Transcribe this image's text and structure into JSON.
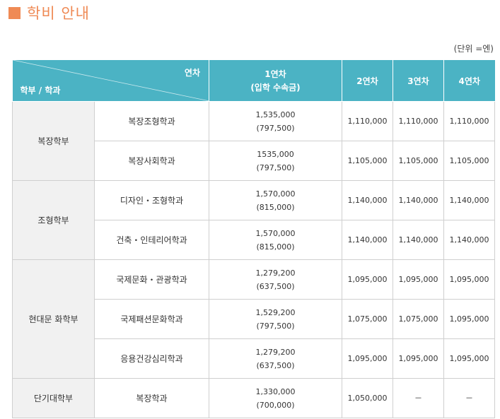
{
  "title": "학비 안내",
  "unit_note": "(단위 =엔)",
  "table": {
    "header": {
      "corner_top": "연차",
      "corner_bottom": "학부 / 학과",
      "year1_line1": "1연차",
      "year1_line2": "(입학 수속금)",
      "year2": "2연차",
      "year3": "3연차",
      "year4": "4연차"
    },
    "groups": [
      {
        "faculty": "복장학부",
        "rows": [
          {
            "dept": "복장조형학과",
            "y1": "1,535,000",
            "y1_sub": "(797,500)",
            "y2": "1,110,000",
            "y3": "1,110,000",
            "y4": "1,110,000"
          },
          {
            "dept": "복장사회학과",
            "y1": "1535,000",
            "y1_sub": "(797,500)",
            "y2": "1,105,000",
            "y3": "1,105,000",
            "y4": "1,105,000"
          }
        ]
      },
      {
        "faculty": "조형학부",
        "rows": [
          {
            "dept": "디자인・조형학과",
            "y1": "1,570,000",
            "y1_sub": "(815,000)",
            "y2": "1,140,000",
            "y3": "1,140,000",
            "y4": "1,140,000"
          },
          {
            "dept": "건축・인테리어학과",
            "y1": "1,570,000",
            "y1_sub": "(815,000)",
            "y2": "1,140,000",
            "y3": "1,140,000",
            "y4": "1,140,000"
          }
        ]
      },
      {
        "faculty": "현대문 화학부",
        "rows": [
          {
            "dept": "국제문화・관광학과",
            "y1": "1,279,200",
            "y1_sub": "(637,500)",
            "y2": "1,095,000",
            "y3": "1,095,000",
            "y4": "1,095,000"
          },
          {
            "dept": "국제패션문화학과",
            "y1": "1,529,200",
            "y1_sub": "(797,500)",
            "y2": "1,075,000",
            "y3": "1,075,000",
            "y4": "1,095,000"
          },
          {
            "dept": "응용건강심리학과",
            "y1": "1,279,200",
            "y1_sub": "(637,500)",
            "y2": "1,095,000",
            "y3": "1,095,000",
            "y4": "1,095,000"
          }
        ]
      },
      {
        "faculty": "단기대학부",
        "rows": [
          {
            "dept": "복장학과",
            "y1": "1,330,000",
            "y1_sub": "(700,000)",
            "y2": "1,050,000",
            "y3": "－",
            "y4": "－"
          }
        ]
      }
    ]
  },
  "colors": {
    "accent_orange": "#ef8a55",
    "header_teal": "#4bb3c4",
    "faculty_bg": "#f1f1f1"
  }
}
